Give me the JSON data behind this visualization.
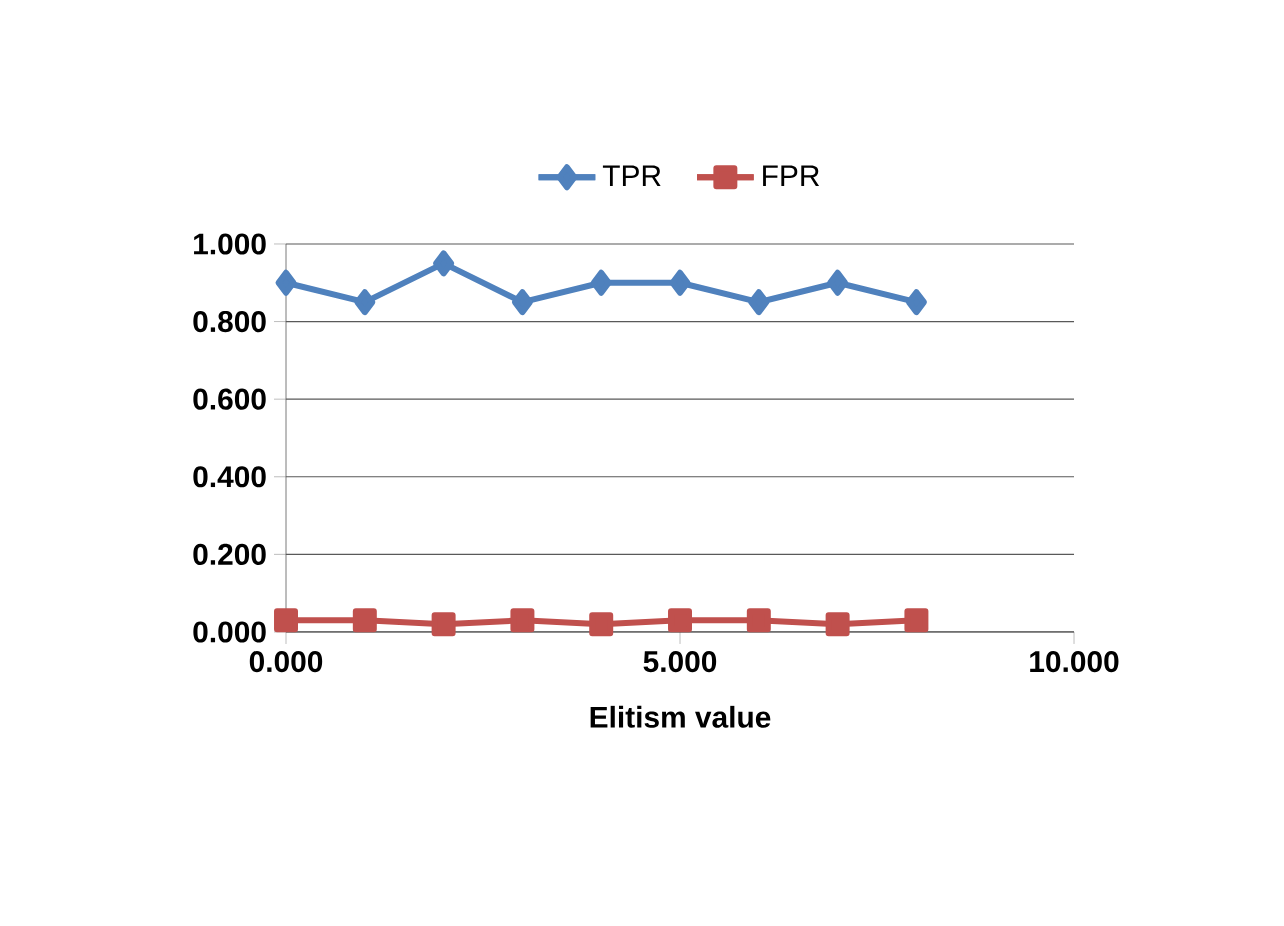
{
  "chart_data": {
    "type": "line",
    "xlabel": "Elitism value",
    "x": [
      0,
      1,
      2,
      3,
      4,
      5,
      6,
      7,
      8
    ],
    "series": [
      {
        "name": "TPR",
        "color": "#4f81bd",
        "marker": "diamond",
        "values": [
          0.9,
          0.85,
          0.95,
          0.85,
          0.9,
          0.9,
          0.85,
          0.9,
          0.85
        ]
      },
      {
        "name": "FPR",
        "color": "#c0504d",
        "marker": "square",
        "values": [
          0.03,
          0.03,
          0.02,
          0.03,
          0.02,
          0.03,
          0.03,
          0.02,
          0.03
        ]
      }
    ],
    "xlim": [
      0,
      10
    ],
    "ylim": [
      0,
      1
    ],
    "xticks": [
      {
        "value": 0,
        "label": "0.000"
      },
      {
        "value": 5,
        "label": "5.000"
      },
      {
        "value": 10,
        "label": "10.000"
      }
    ],
    "yticks": [
      {
        "value": 0,
        "label": "0.000"
      },
      {
        "value": 0.2,
        "label": "0.200"
      },
      {
        "value": 0.4,
        "label": "0.400"
      },
      {
        "value": 0.6,
        "label": "0.600"
      },
      {
        "value": 0.8,
        "label": "0.800"
      },
      {
        "value": 1,
        "label": "1.000"
      }
    ],
    "grid": "y",
    "legend": "top",
    "line_style": "solid"
  }
}
